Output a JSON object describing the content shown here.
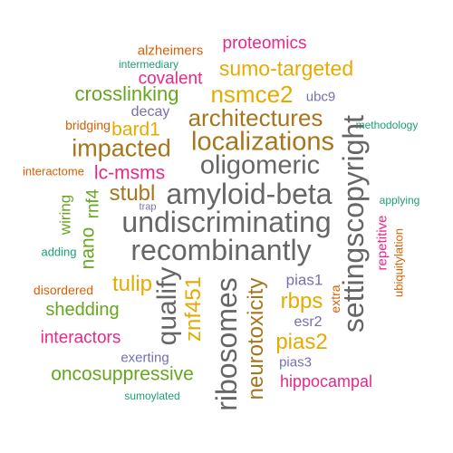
{
  "words": [
    {
      "text": "proteomics",
      "color": "#E7298A"
    },
    {
      "text": "alzheimers",
      "color": "#D95F02"
    },
    {
      "text": "intermediary",
      "color": "#1B9E77"
    },
    {
      "text": "sumo-targeted",
      "color": "#E6AB02"
    },
    {
      "text": "covalent",
      "color": "#E7298A"
    },
    {
      "text": "crosslinking",
      "color": "#66A61E"
    },
    {
      "text": "nsmce2",
      "color": "#E6AB02"
    },
    {
      "text": "ubc9",
      "color": "#7570B3"
    },
    {
      "text": "decay",
      "color": "#7570B3"
    },
    {
      "text": "architectures",
      "color": "#A6761D"
    },
    {
      "text": "bridging",
      "color": "#D95F02"
    },
    {
      "text": "bard1",
      "color": "#E6AB02"
    },
    {
      "text": "methodology",
      "color": "#1B9E77"
    },
    {
      "text": "localizations",
      "color": "#A6761D"
    },
    {
      "text": "impacted",
      "color": "#A6761D"
    },
    {
      "text": "oligomeric",
      "color": "#666666"
    },
    {
      "text": "interactome",
      "color": "#D95F02"
    },
    {
      "text": "lc-msms",
      "color": "#E7298A"
    },
    {
      "text": "stubl",
      "color": "#A6761D"
    },
    {
      "text": "amyloid-beta",
      "color": "#666666"
    },
    {
      "text": "settingscopyright",
      "color": "#666666"
    },
    {
      "text": "rnf4",
      "color": "#66A61E"
    },
    {
      "text": "trap",
      "color": "#7570B3"
    },
    {
      "text": "applying",
      "color": "#1B9E77"
    },
    {
      "text": "wiring",
      "color": "#66A61E"
    },
    {
      "text": "undiscriminating",
      "color": "#666666"
    },
    {
      "text": "nano",
      "color": "#66A61E"
    },
    {
      "text": "adding",
      "color": "#1B9E77"
    },
    {
      "text": "repetitive",
      "color": "#E7298A"
    },
    {
      "text": "recombinantly",
      "color": "#666666"
    },
    {
      "text": "ubiquitylation",
      "color": "#D95F02"
    },
    {
      "text": "qualify",
      "color": "#666666"
    },
    {
      "text": "tulip",
      "color": "#E6AB02"
    },
    {
      "text": "pias1",
      "color": "#7570B3"
    },
    {
      "text": "znf451",
      "color": "#E6AB02"
    },
    {
      "text": "ribosomes",
      "color": "#666666"
    },
    {
      "text": "disordered",
      "color": "#D95F02"
    },
    {
      "text": "extra",
      "color": "#D95F02"
    },
    {
      "text": "rbps",
      "color": "#E6AB02"
    },
    {
      "text": "neurotoxicity",
      "color": "#A6761D"
    },
    {
      "text": "shedding",
      "color": "#66A61E"
    },
    {
      "text": "esr2",
      "color": "#7570B3"
    },
    {
      "text": "interactors",
      "color": "#E7298A"
    },
    {
      "text": "pias2",
      "color": "#E6AB02"
    },
    {
      "text": "exerting",
      "color": "#7570B3"
    },
    {
      "text": "pias3",
      "color": "#7570B3"
    },
    {
      "text": "oncosuppressive",
      "color": "#66A61E"
    },
    {
      "text": "hippocampal",
      "color": "#E7298A"
    },
    {
      "text": "sumoylated",
      "color": "#1B9E77"
    }
  ]
}
